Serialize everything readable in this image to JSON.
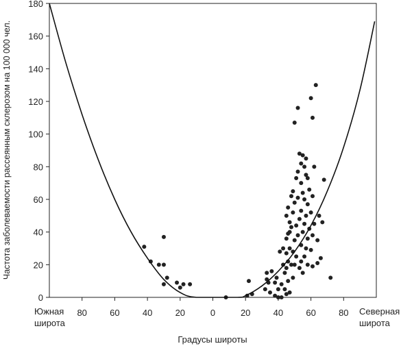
{
  "chart_data": {
    "type": "scatter",
    "title": "",
    "xlabel": "Градусы широты",
    "ylabel": "Частота заболеваемости рассеянным склерозом на 100 000 чел.",
    "x_axis_left_label": [
      "Южная",
      "широта"
    ],
    "x_axis_right_label": [
      "Северная",
      "широта"
    ],
    "x_ticks": [
      {
        "value": -80,
        "label": "80"
      },
      {
        "value": -60,
        "label": "60"
      },
      {
        "value": -40,
        "label": "40"
      },
      {
        "value": -20,
        "label": "20"
      },
      {
        "value": 0,
        "label": "0"
      },
      {
        "value": 20,
        "label": "20"
      },
      {
        "value": 40,
        "label": "40"
      },
      {
        "value": 60,
        "label": "60"
      },
      {
        "value": 80,
        "label": "80"
      }
    ],
    "y_ticks": [
      0,
      20,
      40,
      60,
      80,
      100,
      120,
      140,
      160,
      180
    ],
    "xlim": [
      -100,
      100
    ],
    "ylim": [
      0,
      180
    ],
    "grid": false,
    "series": [
      {
        "type": "scatter",
        "points": [
          [
            -42,
            31
          ],
          [
            -38,
            22
          ],
          [
            -33,
            20
          ],
          [
            -30,
            37
          ],
          [
            -30,
            20
          ],
          [
            -30,
            8
          ],
          [
            -28,
            12
          ],
          [
            -22,
            9
          ],
          [
            -20,
            6
          ],
          [
            -18,
            8
          ],
          [
            -14,
            8
          ],
          [
            8,
            0
          ],
          [
            21,
            1
          ],
          [
            22,
            10
          ],
          [
            24,
            2
          ],
          [
            32,
            5
          ],
          [
            33,
            11
          ],
          [
            33,
            15
          ],
          [
            34,
            9
          ],
          [
            35,
            3
          ],
          [
            36,
            16
          ],
          [
            38,
            1
          ],
          [
            38,
            9
          ],
          [
            39,
            12
          ],
          [
            40,
            0
          ],
          [
            40,
            5
          ],
          [
            41,
            28
          ],
          [
            42,
            0
          ],
          [
            42,
            8
          ],
          [
            43,
            20
          ],
          [
            43,
            30
          ],
          [
            44,
            5
          ],
          [
            44,
            15
          ],
          [
            45,
            2
          ],
          [
            45,
            18
          ],
          [
            45,
            27
          ],
          [
            45,
            36
          ],
          [
            45,
            50
          ],
          [
            46,
            10
          ],
          [
            46,
            22
          ],
          [
            46,
            39
          ],
          [
            46,
            55
          ],
          [
            47,
            3
          ],
          [
            47,
            30
          ],
          [
            47,
            40
          ],
          [
            47,
            46
          ],
          [
            48,
            20
          ],
          [
            48,
            43
          ],
          [
            48,
            62
          ],
          [
            49,
            12
          ],
          [
            49,
            28
          ],
          [
            49,
            52
          ],
          [
            49,
            65
          ],
          [
            50,
            107
          ],
          [
            50,
            20
          ],
          [
            50,
            35
          ],
          [
            50,
            58
          ],
          [
            51,
            25
          ],
          [
            51,
            44
          ],
          [
            51,
            73
          ],
          [
            52,
            38
          ],
          [
            52,
            61
          ],
          [
            52,
            77
          ],
          [
            52,
            116
          ],
          [
            53,
            18
          ],
          [
            53,
            48
          ],
          [
            53,
            88
          ],
          [
            54,
            22
          ],
          [
            54,
            32
          ],
          [
            54,
            53
          ],
          [
            54,
            70
          ],
          [
            54,
            82
          ],
          [
            55,
            15
          ],
          [
            55,
            40
          ],
          [
            55,
            64
          ],
          [
            55,
            87
          ],
          [
            56,
            25
          ],
          [
            56,
            45
          ],
          [
            56,
            60
          ],
          [
            56,
            80
          ],
          [
            57,
            30
          ],
          [
            57,
            50
          ],
          [
            57,
            75
          ],
          [
            57,
            85
          ],
          [
            58,
            20
          ],
          [
            58,
            36
          ],
          [
            58,
            57
          ],
          [
            58,
            73
          ],
          [
            59,
            42
          ],
          [
            59,
            66
          ],
          [
            60,
            29
          ],
          [
            60,
            52
          ],
          [
            60,
            122
          ],
          [
            61,
            19
          ],
          [
            61,
            38
          ],
          [
            61,
            62
          ],
          [
            61,
            110
          ],
          [
            62,
            45
          ],
          [
            62,
            80
          ],
          [
            63,
            130
          ],
          [
            64,
            21
          ],
          [
            64,
            35
          ],
          [
            65,
            50
          ],
          [
            66,
            24
          ],
          [
            67,
            46
          ],
          [
            68,
            72
          ],
          [
            72,
            12
          ]
        ]
      },
      {
        "type": "line",
        "name": "",
        "points": [
          [
            -100,
            180
          ],
          [
            -90,
            144
          ],
          [
            -80,
            112
          ],
          [
            -70,
            84
          ],
          [
            -60,
            60
          ],
          [
            -50,
            40
          ],
          [
            -40,
            24
          ],
          [
            -30,
            11
          ],
          [
            -20,
            3
          ],
          [
            -10,
            0
          ],
          [
            15,
            0
          ],
          [
            20,
            1
          ],
          [
            30,
            7
          ],
          [
            40,
            16
          ],
          [
            50,
            28
          ],
          [
            60,
            44
          ],
          [
            70,
            65
          ],
          [
            80,
            92
          ],
          [
            90,
            127
          ],
          [
            99,
            169
          ]
        ]
      }
    ]
  }
}
